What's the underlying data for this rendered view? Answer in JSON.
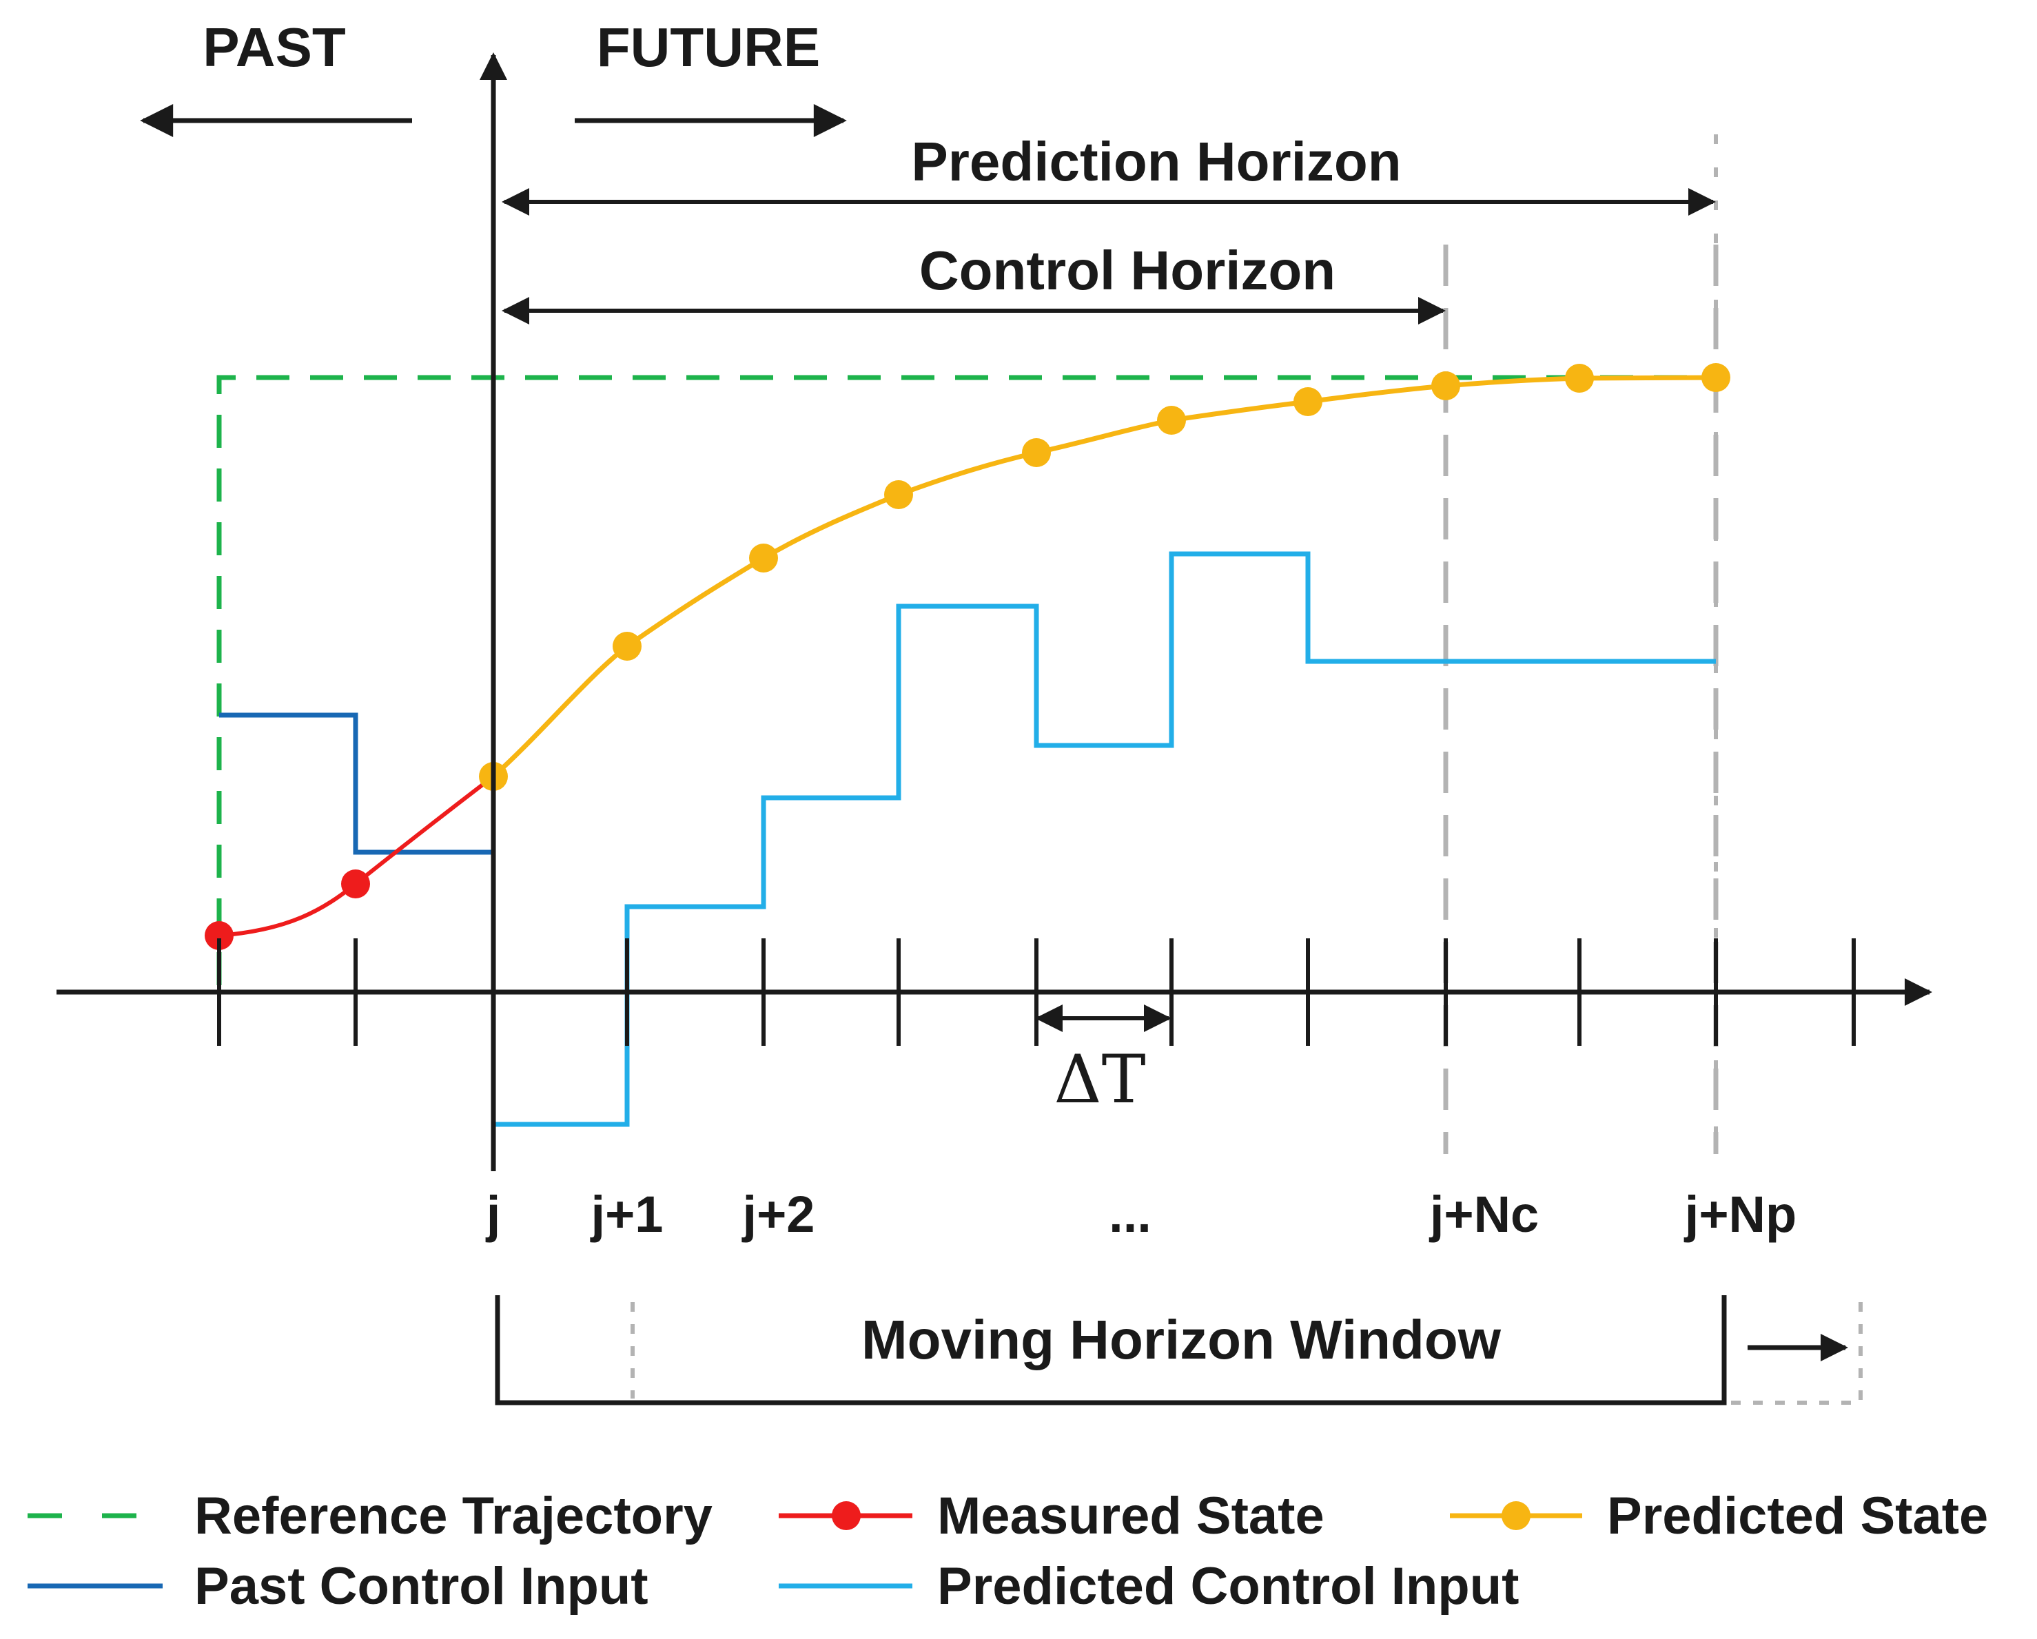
{
  "labels": {
    "past": "PAST",
    "future": "FUTURE",
    "prediction_horizon": "Prediction Horizon",
    "control_horizon": "Control Horizon",
    "delta_t": "ΔT",
    "moving_window": "Moving Horizon Window"
  },
  "ticks": [
    "j",
    "j+1",
    "j+2",
    "...",
    "j+Nc",
    "j+Np"
  ],
  "legend": [
    {
      "label": "Reference Trajectory",
      "style": "dashed",
      "color": "#1db34b"
    },
    {
      "label": "Measured State",
      "style": "line-marker",
      "color": "#ee1c1c"
    },
    {
      "label": "Predicted State",
      "style": "line-marker",
      "color": "#f7b512"
    },
    {
      "label": "Past Control Input",
      "style": "line",
      "color": "#1868b4"
    },
    {
      "label": "Predicted Control Input",
      "style": "line",
      "color": "#22aee8"
    }
  ],
  "colors": {
    "axis": "#1a1a1a",
    "guide": "#b3b3b3",
    "reference": "#1db34b",
    "measured": "#ee1c1c",
    "predicted": "#f7b512",
    "past_input": "#1868b4",
    "predicted_input": "#22aee8"
  }
}
